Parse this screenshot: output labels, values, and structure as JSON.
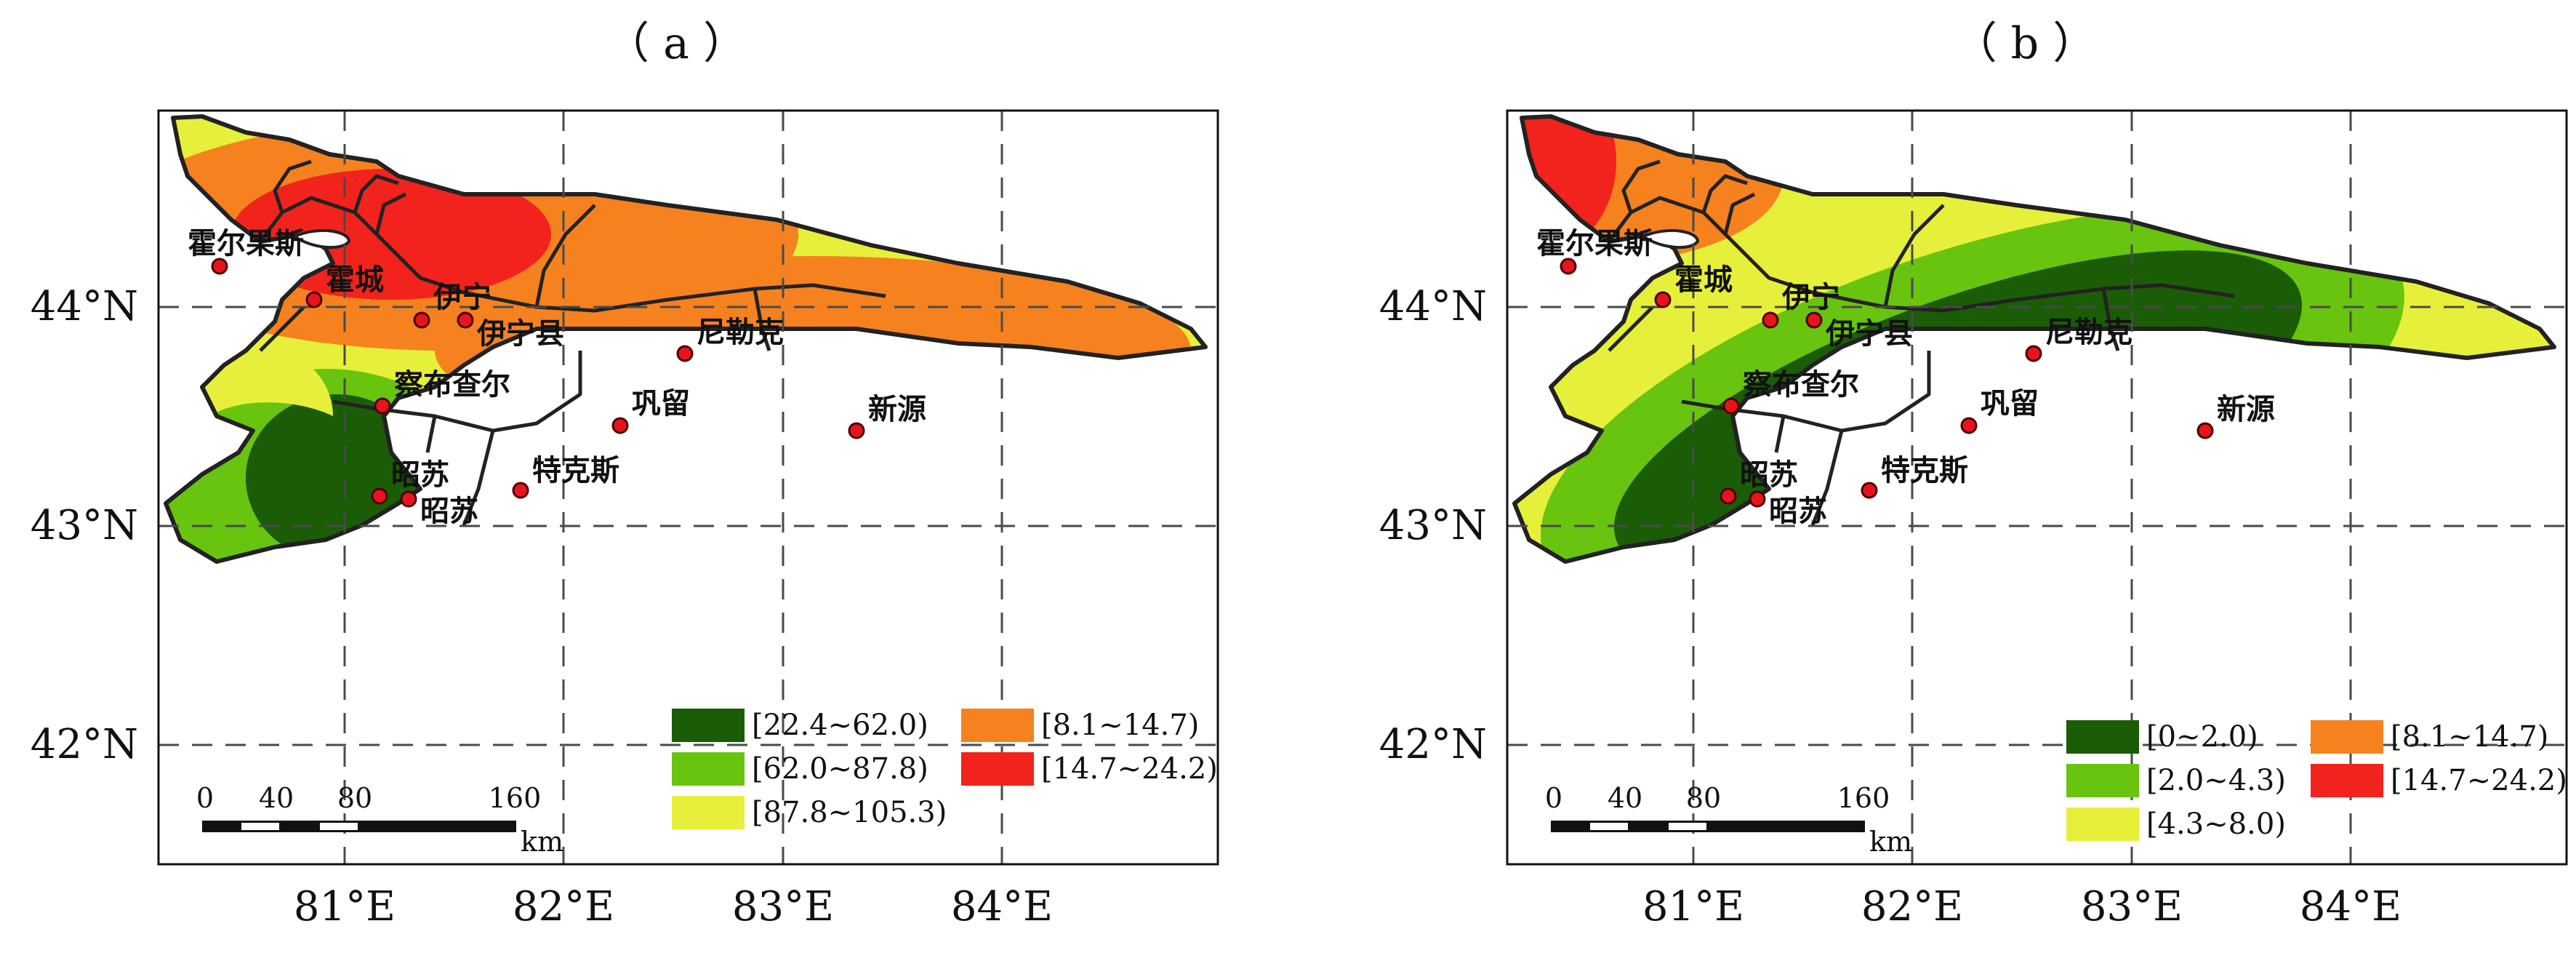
{
  "colors": {
    "dark_green": "#1b5c07",
    "green": "#68c40f",
    "yellow": "#e6f03a",
    "orange": "#f5821f",
    "red": "#f2231c",
    "lake_blue": "#ffffff"
  },
  "panels": [
    {
      "id": "a",
      "title": "（ a ）",
      "lon_labels": [
        "81°E",
        "82°E",
        "83°E",
        "84°E"
      ],
      "lat_labels": [
        "44°N",
        "43°N",
        "42°N"
      ],
      "cities": [
        "霍尔果斯",
        "霍城",
        "伊宁",
        "伊宁县",
        "尼勒克",
        "察布查尔",
        "巩留",
        "新源",
        "昭苏",
        "昭苏",
        "特克斯"
      ],
      "legend": [
        {
          "label": "[22.4~62.0)",
          "color": "#1b5c07"
        },
        {
          "label": "[62.0~87.8)",
          "color": "#68c40f"
        },
        {
          "label": "[87.8~105.3)",
          "color": "#e6f03a"
        },
        {
          "label": "[8.1~14.7)",
          "color": "#f5821f"
        },
        {
          "label": "[14.7~24.2)",
          "color": "#f2231c"
        }
      ],
      "scale": {
        "ticks": [
          "0",
          "40",
          "80",
          "160"
        ],
        "unit": "km"
      }
    },
    {
      "id": "b",
      "title": "（ b ）",
      "lon_labels": [
        "81°E",
        "82°E",
        "83°E",
        "84°E"
      ],
      "lat_labels": [
        "44°N",
        "43°N",
        "42°N"
      ],
      "cities": [
        "霍尔果斯",
        "霍城",
        "伊宁",
        "伊宁县",
        "尼勒克",
        "察布查尔",
        "巩留",
        "新源",
        "昭苏",
        "昭苏",
        "特克斯"
      ],
      "legend": [
        {
          "label": "[0~2.0)",
          "color": "#1b5c07"
        },
        {
          "label": "[2.0~4.3)",
          "color": "#68c40f"
        },
        {
          "label": "[4.3~8.0)",
          "color": "#e6f03a"
        },
        {
          "label": "[8.1~14.7)",
          "color": "#f5821f"
        },
        {
          "label": "[14.7~24.2)",
          "color": "#f2231c"
        }
      ],
      "scale": {
        "ticks": [
          "0",
          "40",
          "80",
          "160"
        ],
        "unit": "km"
      }
    }
  ]
}
